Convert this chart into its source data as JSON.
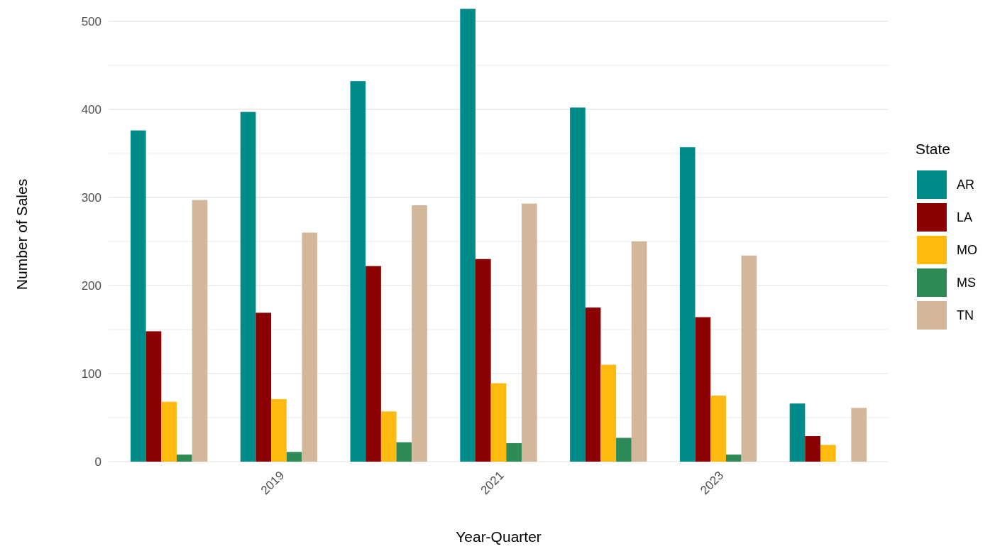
{
  "chart_data": {
    "type": "bar",
    "xlabel": "Year-Quarter",
    "ylabel": "Number of Sales",
    "legend_title": "State",
    "categories": [
      null,
      "2019",
      null,
      "2021",
      null,
      "2023",
      null
    ],
    "series": [
      {
        "name": "AR",
        "color": "#008b8b",
        "values": [
          376,
          397,
          432,
          514,
          402,
          357,
          66
        ]
      },
      {
        "name": "LA",
        "color": "#8b0000",
        "values": [
          148,
          169,
          222,
          230,
          175,
          164,
          29
        ]
      },
      {
        "name": "MO",
        "color": "#ffb90f",
        "values": [
          68,
          71,
          57,
          89,
          110,
          75,
          19
        ]
      },
      {
        "name": "MS",
        "color": "#2e8b57",
        "values": [
          8,
          11,
          22,
          21,
          27,
          8,
          null
        ]
      },
      {
        "name": "TN",
        "color": "#d2b79b",
        "values": [
          297,
          260,
          291,
          293,
          250,
          234,
          61
        ]
      }
    ],
    "ylim": [
      0,
      516
    ],
    "yticks": [
      0,
      {
        "value": 50,
        "label": null
      },
      100,
      {
        "value": 150,
        "label": null
      },
      200,
      {
        "value": 250,
        "label": null
      },
      300,
      {
        "value": 350,
        "label": null
      },
      400,
      {
        "value": 450,
        "label": null
      },
      500
    ],
    "grid": "y",
    "legend": "right"
  }
}
